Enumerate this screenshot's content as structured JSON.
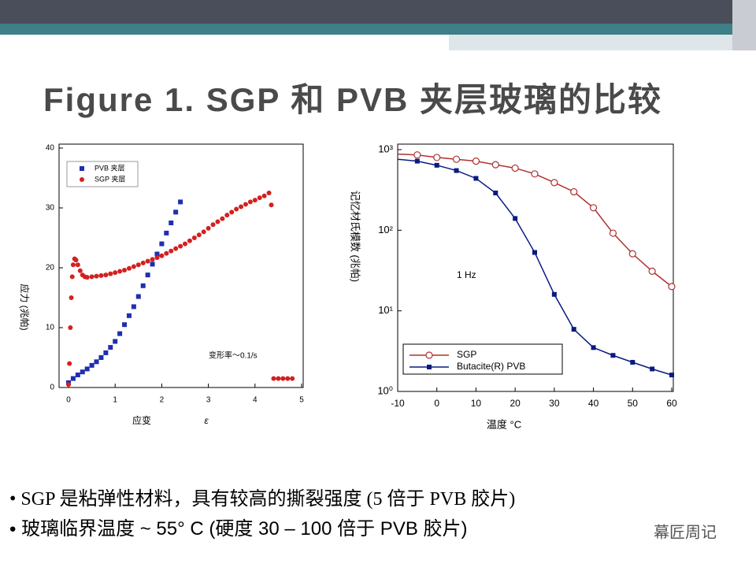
{
  "slide_title": "Figure 1. SGP 和 PVB 夹层玻璃的比较",
  "bullets": [
    "SGP 是粘弹性材料，具有较高的撕裂强度 (5 倍于 PVB 胶片)",
    "玻璃临界温度 ~ 55° C (硬度 30 – 100 倍于 PVB 胶片)"
  ],
  "watermark": "幕匠周记",
  "chart_data": [
    {
      "type": "scatter",
      "x_label": "应变",
      "x_symbol": "ε",
      "y_label": "应力 (兆帕)",
      "annotation": "变形率～0.1/s",
      "xlim": [
        0,
        5
      ],
      "xticks": [
        0,
        1,
        2,
        3,
        4,
        5
      ],
      "ylim": [
        0,
        40
      ],
      "yticks": [
        0,
        10,
        20,
        30,
        40
      ],
      "legend": "upper left",
      "series": [
        {
          "name": "PVB 夹层",
          "color": "#1f2fb0",
          "marker": "square",
          "x": [
            0.0,
            0.1,
            0.2,
            0.3,
            0.4,
            0.5,
            0.6,
            0.7,
            0.8,
            0.9,
            1.0,
            1.1,
            1.2,
            1.3,
            1.4,
            1.5,
            1.6,
            1.7,
            1.8,
            1.9,
            2.0,
            2.1,
            2.2,
            2.3,
            2.4
          ],
          "values": [
            0.8,
            1.5,
            2.1,
            2.6,
            3.1,
            3.7,
            4.3,
            5.0,
            5.8,
            6.7,
            7.7,
            9.0,
            10.5,
            12.0,
            13.5,
            15.2,
            17.0,
            18.8,
            20.6,
            22.3,
            24.0,
            25.8,
            27.5,
            29.3,
            31.0
          ]
        },
        {
          "name": "SGP 夹层",
          "color": "#d42020",
          "marker": "circle",
          "x": [
            0.0,
            0.02,
            0.04,
            0.06,
            0.08,
            0.1,
            0.13,
            0.16,
            0.2,
            0.25,
            0.3,
            0.35,
            0.4,
            0.5,
            0.6,
            0.7,
            0.8,
            0.9,
            1.0,
            1.1,
            1.2,
            1.3,
            1.4,
            1.5,
            1.6,
            1.7,
            1.8,
            1.9,
            2.0,
            2.1,
            2.2,
            2.3,
            2.4,
            2.5,
            2.6,
            2.7,
            2.8,
            2.9,
            3.0,
            3.1,
            3.2,
            3.3,
            3.4,
            3.5,
            3.6,
            3.7,
            3.8,
            3.9,
            4.0,
            4.1,
            4.2,
            4.3,
            4.35,
            4.4,
            4.5,
            4.6,
            4.7,
            4.8
          ],
          "values": [
            0.5,
            4,
            10,
            15,
            18.5,
            20.5,
            21.5,
            21.3,
            20.5,
            19.5,
            18.8,
            18.5,
            18.4,
            18.5,
            18.6,
            18.7,
            18.8,
            19.0,
            19.2,
            19.4,
            19.6,
            19.9,
            20.2,
            20.5,
            20.8,
            21.1,
            21.4,
            21.7,
            22.0,
            22.4,
            22.8,
            23.2,
            23.6,
            24.0,
            24.5,
            25.0,
            25.5,
            26.0,
            26.6,
            27.2,
            27.7,
            28.2,
            28.8,
            29.3,
            29.8,
            30.2,
            30.6,
            31.0,
            31.3,
            31.7,
            32.0,
            32.5,
            30.5,
            1.5,
            1.5,
            1.5,
            1.5,
            1.5
          ]
        }
      ]
    },
    {
      "type": "line",
      "x_label": "温度 °C",
      "y_label": "记忆材氏模数 (兆帕)",
      "annotation": "1 Hz",
      "log_y": true,
      "xlim": [
        -10,
        60
      ],
      "xticks": [
        -10,
        0,
        10,
        20,
        30,
        40,
        50,
        60
      ],
      "ylim": [
        1,
        1000
      ],
      "yticks": [
        {
          "value": 1,
          "label": "10⁰"
        },
        {
          "value": 10,
          "label": "10¹"
        },
        {
          "value": 100,
          "label": "10²"
        },
        {
          "value": 1000,
          "label": "10³"
        }
      ],
      "legend": "lower left",
      "x": [
        -10,
        -5,
        0,
        5,
        10,
        15,
        20,
        25,
        30,
        35,
        40,
        45,
        50,
        55,
        60
      ],
      "series": [
        {
          "name": "SGP",
          "color": "#b03030",
          "marker": "open-circle",
          "values": [
            880,
            860,
            800,
            760,
            720,
            650,
            590,
            500,
            390,
            300,
            190,
            92,
            51,
            31,
            20
          ]
        },
        {
          "name": "Butacite(R) PVB",
          "color": "#0a1a80",
          "marker": "square",
          "values": [
            760,
            720,
            640,
            550,
            440,
            290,
            140,
            53,
            16,
            5.9,
            3.5,
            2.8,
            2.3,
            1.9,
            1.6
          ]
        }
      ]
    }
  ]
}
